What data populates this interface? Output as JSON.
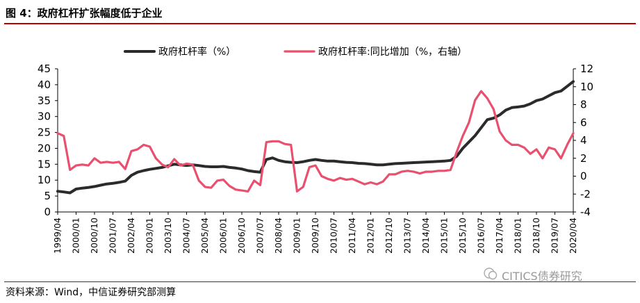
{
  "header": {
    "title": "图 4：政府杠杆扩张幅度低于企业"
  },
  "footer": {
    "source": "资料来源：Wind，中信证券研究部测算"
  },
  "watermark": {
    "text": "CITICS债券研究",
    "icon": "wechat-icon"
  },
  "colors": {
    "title_rule": "#c00000",
    "series_left": "#2b2b2b",
    "series_right": "#e8506e"
  },
  "chart_data": {
    "type": "line",
    "legend_position": "top",
    "grid": false,
    "x_start": "1999-04",
    "x_end": "2020-04",
    "x_ticks": [
      "1999/04",
      "2000/01",
      "2000/10",
      "2001/07",
      "2002/04",
      "2003/01",
      "2003/10",
      "2004/07",
      "2005/04",
      "2006/01",
      "2006/10",
      "2007/07",
      "2008/04",
      "2009/01",
      "2009/10",
      "2010/07",
      "2011/04",
      "2012/01",
      "2012/10",
      "2013/07",
      "2014/04",
      "2015/01",
      "2015/10",
      "2016/07",
      "2017/04",
      "2018/01",
      "2018/10",
      "2019/07",
      "2020/04"
    ],
    "y_left": {
      "min": 0,
      "max": 45,
      "ticks": [
        0,
        5,
        10,
        15,
        20,
        25,
        30,
        35,
        40,
        45
      ]
    },
    "y_right": {
      "min": -4,
      "max": 12,
      "ticks": [
        -4,
        -2,
        0,
        2,
        4,
        6,
        8,
        10,
        12
      ]
    },
    "series": [
      {
        "name": "政府杠杆率（%）",
        "axis": "left",
        "points": [
          [
            "1999-04",
            6.5
          ],
          [
            "1999-07",
            6.3
          ],
          [
            "1999-10",
            6.0
          ],
          [
            "2000-01",
            7.2
          ],
          [
            "2000-04",
            7.5
          ],
          [
            "2000-07",
            7.7
          ],
          [
            "2000-10",
            8.0
          ],
          [
            "2001-01",
            8.4
          ],
          [
            "2001-04",
            8.8
          ],
          [
            "2001-07",
            9.0
          ],
          [
            "2001-10",
            9.3
          ],
          [
            "2002-01",
            9.7
          ],
          [
            "2002-04",
            11.5
          ],
          [
            "2002-07",
            12.5
          ],
          [
            "2002-10",
            13.0
          ],
          [
            "2003-01",
            13.4
          ],
          [
            "2003-04",
            13.7
          ],
          [
            "2003-07",
            14.0
          ],
          [
            "2003-10",
            14.5
          ],
          [
            "2004-01",
            15.0
          ],
          [
            "2004-04",
            14.8
          ],
          [
            "2004-07",
            14.6
          ],
          [
            "2004-10",
            14.8
          ],
          [
            "2005-01",
            14.6
          ],
          [
            "2005-04",
            14.3
          ],
          [
            "2005-07",
            14.2
          ],
          [
            "2005-10",
            14.2
          ],
          [
            "2006-01",
            14.3
          ],
          [
            "2006-04",
            14.0
          ],
          [
            "2006-07",
            13.8
          ],
          [
            "2006-10",
            13.5
          ],
          [
            "2007-01",
            13.0
          ],
          [
            "2007-04",
            12.7
          ],
          [
            "2007-07",
            12.5
          ],
          [
            "2007-10",
            16.5
          ],
          [
            "2008-01",
            17.0
          ],
          [
            "2008-04",
            16.2
          ],
          [
            "2008-07",
            15.8
          ],
          [
            "2008-10",
            15.6
          ],
          [
            "2009-01",
            15.5
          ],
          [
            "2009-04",
            15.8
          ],
          [
            "2009-07",
            16.2
          ],
          [
            "2009-10",
            16.5
          ],
          [
            "2010-01",
            16.2
          ],
          [
            "2010-04",
            16.0
          ],
          [
            "2010-07",
            16.0
          ],
          [
            "2010-10",
            15.8
          ],
          [
            "2011-01",
            15.6
          ],
          [
            "2011-04",
            15.5
          ],
          [
            "2011-07",
            15.3
          ],
          [
            "2011-10",
            15.2
          ],
          [
            "2012-01",
            15.0
          ],
          [
            "2012-04",
            14.8
          ],
          [
            "2012-07",
            14.8
          ],
          [
            "2012-10",
            15.0
          ],
          [
            "2013-01",
            15.2
          ],
          [
            "2013-04",
            15.3
          ],
          [
            "2013-07",
            15.4
          ],
          [
            "2013-10",
            15.5
          ],
          [
            "2014-01",
            15.6
          ],
          [
            "2014-04",
            15.7
          ],
          [
            "2014-07",
            15.8
          ],
          [
            "2014-10",
            15.9
          ],
          [
            "2015-01",
            16.0
          ],
          [
            "2015-04",
            16.2
          ],
          [
            "2015-07",
            17.5
          ],
          [
            "2015-10",
            20.0
          ],
          [
            "2016-01",
            22.0
          ],
          [
            "2016-04",
            24.0
          ],
          [
            "2016-07",
            26.5
          ],
          [
            "2016-10",
            29.0
          ],
          [
            "2017-01",
            29.5
          ],
          [
            "2017-04",
            30.5
          ],
          [
            "2017-07",
            32.0
          ],
          [
            "2017-10",
            32.8
          ],
          [
            "2018-01",
            33.0
          ],
          [
            "2018-04",
            33.3
          ],
          [
            "2018-07",
            34.0
          ],
          [
            "2018-10",
            35.0
          ],
          [
            "2019-01",
            35.5
          ],
          [
            "2019-04",
            36.5
          ],
          [
            "2019-07",
            37.5
          ],
          [
            "2019-10",
            38.0
          ],
          [
            "2020-01",
            39.5
          ],
          [
            "2020-04",
            41.0
          ]
        ]
      },
      {
        "name": "政府杠杆率:同比增加（%，右轴）",
        "axis": "right",
        "points": [
          [
            "1999-04",
            4.8
          ],
          [
            "1999-07",
            4.5
          ],
          [
            "1999-10",
            0.7
          ],
          [
            "2000-01",
            1.2
          ],
          [
            "2000-04",
            1.3
          ],
          [
            "2000-07",
            1.2
          ],
          [
            "2000-10",
            2.0
          ],
          [
            "2001-01",
            1.5
          ],
          [
            "2001-04",
            1.6
          ],
          [
            "2001-07",
            1.5
          ],
          [
            "2001-10",
            1.6
          ],
          [
            "2002-01",
            0.8
          ],
          [
            "2002-04",
            2.8
          ],
          [
            "2002-07",
            3.0
          ],
          [
            "2002-10",
            3.5
          ],
          [
            "2003-01",
            3.3
          ],
          [
            "2003-04",
            2.0
          ],
          [
            "2003-07",
            1.3
          ],
          [
            "2003-10",
            1.0
          ],
          [
            "2004-01",
            1.9
          ],
          [
            "2004-04",
            1.2
          ],
          [
            "2004-07",
            1.4
          ],
          [
            "2004-10",
            1.3
          ],
          [
            "2005-01",
            -0.5
          ],
          [
            "2005-04",
            -1.2
          ],
          [
            "2005-07",
            -1.3
          ],
          [
            "2005-10",
            -0.5
          ],
          [
            "2006-01",
            -0.4
          ],
          [
            "2006-04",
            -1.1
          ],
          [
            "2006-07",
            -1.5
          ],
          [
            "2006-10",
            -1.6
          ],
          [
            "2007-01",
            -1.7
          ],
          [
            "2007-04",
            -0.5
          ],
          [
            "2007-07",
            -1.0
          ],
          [
            "2007-10",
            3.8
          ],
          [
            "2008-01",
            3.9
          ],
          [
            "2008-04",
            3.9
          ],
          [
            "2008-07",
            3.6
          ],
          [
            "2008-10",
            3.5
          ],
          [
            "2009-01",
            -1.7
          ],
          [
            "2009-04",
            -1.2
          ],
          [
            "2009-07",
            1.0
          ],
          [
            "2009-10",
            1.2
          ],
          [
            "2010-01",
            0.0
          ],
          [
            "2010-04",
            -0.3
          ],
          [
            "2010-07",
            -0.5
          ],
          [
            "2010-10",
            -0.2
          ],
          [
            "2011-01",
            -0.4
          ],
          [
            "2011-04",
            -0.3
          ],
          [
            "2011-07",
            -0.6
          ],
          [
            "2011-10",
            -0.9
          ],
          [
            "2012-01",
            -0.7
          ],
          [
            "2012-04",
            -0.9
          ],
          [
            "2012-07",
            -0.6
          ],
          [
            "2012-10",
            0.2
          ],
          [
            "2013-01",
            0.2
          ],
          [
            "2013-04",
            0.5
          ],
          [
            "2013-07",
            0.6
          ],
          [
            "2013-10",
            0.5
          ],
          [
            "2014-01",
            0.3
          ],
          [
            "2014-04",
            0.5
          ],
          [
            "2014-07",
            0.5
          ],
          [
            "2014-10",
            0.6
          ],
          [
            "2015-01",
            0.6
          ],
          [
            "2015-04",
            0.7
          ],
          [
            "2015-07",
            2.7
          ],
          [
            "2015-10",
            4.5
          ],
          [
            "2016-01",
            6.0
          ],
          [
            "2016-04",
            8.5
          ],
          [
            "2016-07",
            9.5
          ],
          [
            "2016-10",
            8.7
          ],
          [
            "2017-01",
            7.5
          ],
          [
            "2017-04",
            5.0
          ],
          [
            "2017-07",
            4.0
          ],
          [
            "2017-10",
            3.5
          ],
          [
            "2018-01",
            3.5
          ],
          [
            "2018-04",
            3.2
          ],
          [
            "2018-07",
            2.5
          ],
          [
            "2018-10",
            3.0
          ],
          [
            "2019-01",
            2.0
          ],
          [
            "2019-04",
            3.2
          ],
          [
            "2019-07",
            3.0
          ],
          [
            "2019-10",
            2.0
          ],
          [
            "2020-01",
            3.5
          ],
          [
            "2020-04",
            4.8
          ]
        ]
      }
    ]
  }
}
